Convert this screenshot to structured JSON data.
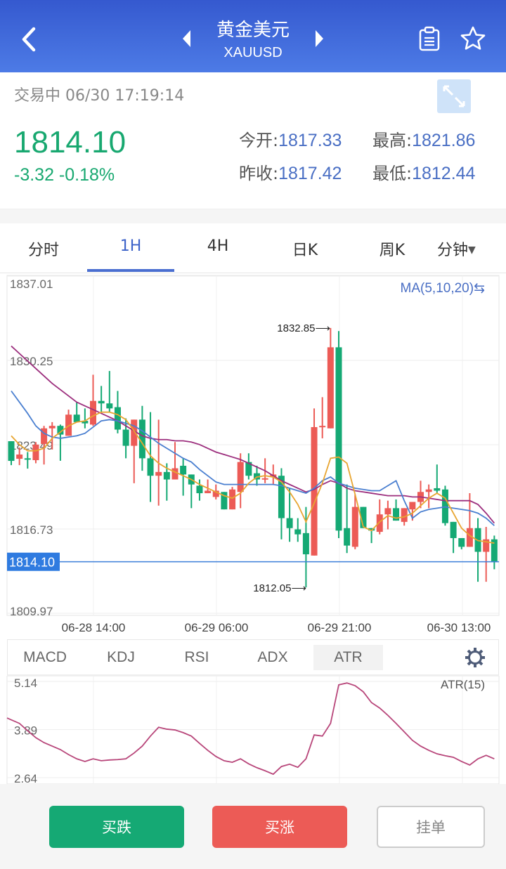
{
  "header": {
    "title": "黄金美元",
    "symbol": "XAUUSD",
    "icons": [
      "back-chevron-icon",
      "prev-triangle-icon",
      "next-triangle-icon",
      "clipboard-icon",
      "star-icon"
    ]
  },
  "quote": {
    "status": "交易中 06/30 17:19:14",
    "price": "1814.10",
    "change": "-3.32 -0.18%",
    "open_label": "今开:",
    "open": "1817.33",
    "high_label": "最高:",
    "high": "1821.86",
    "prev_close_label": "昨收:",
    "prev_close": "1817.42",
    "low_label": "最低:",
    "low": "1812.44",
    "expand_icon": "expand-icon"
  },
  "colors": {
    "up": "#ec5b56",
    "down": "#15a974",
    "accent": "#3d63c9",
    "ma5": "#e8a531",
    "ma10": "#4a7fd0",
    "ma20": "#9c2e7d",
    "atr": "#b8467a"
  },
  "period_tabs": [
    {
      "label": "分时"
    },
    {
      "label": "1H",
      "active": true
    },
    {
      "label": "4H"
    },
    {
      "label": "日K"
    },
    {
      "label": "周K"
    },
    {
      "label": "分钟"
    }
  ],
  "indicator_tabs": [
    {
      "label": "MACD"
    },
    {
      "label": "KDJ"
    },
    {
      "label": "RSI"
    },
    {
      "label": "ADX"
    },
    {
      "label": "ATR",
      "active": true
    }
  ],
  "buttons": {
    "sell": "买跌",
    "buy": "买涨",
    "order": "挂单"
  },
  "chart_data": [
    {
      "type": "candlestick",
      "ma_label": "MA(5,10,20)⇆",
      "y_ticks": [
        "1837.01",
        "1830.25",
        "1823.49",
        "1816.73",
        "1809.97"
      ],
      "ylim": [
        1809.97,
        1837.01
      ],
      "current_price": "1814.10",
      "max_label": "1832.85⟶",
      "min_label": "1812.05⟶",
      "x_ticks": [
        "06-28 14:00",
        "06-29 06:00",
        "06-29 21:00",
        "06-30 13:00"
      ],
      "grid": true,
      "ohlc": [
        [
          1823.77,
          1823.77,
          1821.85,
          1822.19
        ],
        [
          1822.36,
          1823.26,
          1821.85,
          1822.7
        ],
        [
          1822.4,
          1822.9,
          1821.57,
          1822.3
        ],
        [
          1822.25,
          1823.7,
          1822.0,
          1823.5
        ],
        [
          1823.55,
          1825.0,
          1821.9,
          1824.8
        ],
        [
          1824.8,
          1825.3,
          1823.1,
          1825.0
        ],
        [
          1825.0,
          1825.1,
          1822.2,
          1824.3
        ],
        [
          1824.2,
          1826.3,
          1824.2,
          1825.9
        ],
        [
          1825.9,
          1826.9,
          1825.3,
          1825.3
        ],
        [
          1825.4,
          1826.4,
          1824.8,
          1825.2
        ],
        [
          1825.1,
          1829.1,
          1825.0,
          1827.0
        ],
        [
          1827.0,
          1828.2,
          1826.1,
          1826.8
        ],
        [
          1826.8,
          1829.4,
          1826.1,
          1826.4
        ],
        [
          1826.5,
          1827.8,
          1824.4,
          1824.7
        ],
        [
          1824.7,
          1825.6,
          1822.4,
          1823.4
        ],
        [
          1823.4,
          1825.5,
          1820.4,
          1825.5
        ],
        [
          1825.5,
          1826.6,
          1821.4,
          1822.4
        ],
        [
          1822.4,
          1826.1,
          1818.9,
          1821.0
        ],
        [
          1821.0,
          1825.5,
          1818.6,
          1821.3
        ],
        [
          1821.3,
          1822.0,
          1819.0,
          1820.7
        ],
        [
          1820.7,
          1823.7,
          1820.7,
          1821.6
        ],
        [
          1821.8,
          1822.4,
          1819.4,
          1821.1
        ],
        [
          1821.1,
          1821.1,
          1818.4,
          1820.3
        ],
        [
          1820.2,
          1820.7,
          1819.0,
          1819.6
        ],
        [
          1819.6,
          1820.7,
          1819.6,
          1819.8
        ],
        [
          1819.3,
          1820.3,
          1819.1,
          1819.8
        ],
        [
          1819.7,
          1819.7,
          1818.3,
          1818.3
        ],
        [
          1818.3,
          1820.1,
          1818.3,
          1819.9
        ],
        [
          1819.7,
          1822.8,
          1818.4,
          1822.1
        ],
        [
          1822.1,
          1822.8,
          1820.7,
          1821.0
        ],
        [
          1821.2,
          1821.8,
          1820.2,
          1820.7
        ],
        [
          1820.7,
          1822.4,
          1820.4,
          1820.8
        ],
        [
          1820.9,
          1821.9,
          1820.3,
          1821.1
        ],
        [
          1821.0,
          1821.6,
          1815.9,
          1817.6
        ],
        [
          1817.6,
          1820.0,
          1815.7,
          1816.8
        ],
        [
          1816.7,
          1817.6,
          1815.7,
          1816.3
        ],
        [
          1816.4,
          1818.5,
          1812.05,
          1814.7
        ],
        [
          1814.6,
          1826.4,
          1814.6,
          1824.9
        ],
        [
          1824.9,
          1827.3,
          1824.0,
          1825.0
        ],
        [
          1824.8,
          1832.85,
          1824.8,
          1831.3
        ],
        [
          1831.3,
          1832.6,
          1816.0,
          1816.6
        ],
        [
          1816.8,
          1820.3,
          1814.8,
          1815.4
        ],
        [
          1815.3,
          1819.5,
          1815.1,
          1818.5
        ],
        [
          1818.5,
          1818.5,
          1816.8,
          1816.8
        ],
        [
          1816.8,
          1816.8,
          1815.6,
          1816.6
        ],
        [
          1816.5,
          1819.1,
          1816.3,
          1817.9
        ],
        [
          1817.9,
          1819.0,
          1816.7,
          1818.4
        ],
        [
          1818.4,
          1819.1,
          1817.4,
          1817.4
        ],
        [
          1817.3,
          1818.4,
          1817.0,
          1818.4
        ],
        [
          1818.3,
          1818.9,
          1817.4,
          1818.9
        ],
        [
          1818.9,
          1820.6,
          1818.4,
          1819.7
        ],
        [
          1819.7,
          1820.3,
          1818.4,
          1819.9
        ],
        [
          1820.0,
          1821.9,
          1819.6,
          1819.8
        ],
        [
          1819.9,
          1820.2,
          1817.0,
          1817.2
        ],
        [
          1817.3,
          1817.3,
          1814.8,
          1816.0
        ],
        [
          1816.0,
          1816.0,
          1815.1,
          1815.3
        ],
        [
          1815.3,
          1819.6,
          1815.3,
          1816.8
        ],
        [
          1816.8,
          1817.6,
          1812.5,
          1814.9
        ],
        [
          1814.9,
          1816.9,
          1812.5,
          1815.9
        ],
        [
          1815.9,
          1816.2,
          1813.5,
          1814.1
        ]
      ],
      "ma5": [
        1824.2,
        1823.5,
        1823.0,
        1823.0,
        1823.2,
        1824.0,
        1824.5,
        1825.0,
        1825.3,
        1825.4,
        1825.8,
        1826.1,
        1826.1,
        1825.9,
        1825.5,
        1824.6,
        1823.6,
        1822.6,
        1822.0,
        1821.6,
        1821.3,
        1821.0,
        1820.7,
        1820.3,
        1820.0,
        1819.7,
        1819.4,
        1819.2,
        1819.6,
        1820.4,
        1820.9,
        1821.0,
        1820.9,
        1820.5,
        1819.7,
        1818.7,
        1817.3,
        1818.8,
        1820.4,
        1822.4,
        1822.5,
        1822.0,
        1819.5,
        1816.9,
        1816.6,
        1817.3,
        1817.8,
        1817.6,
        1817.7,
        1818.0,
        1818.6,
        1819.2,
        1819.6,
        1819.2,
        1818.0,
        1816.8,
        1816.2,
        1815.8,
        1815.7,
        1815.6
      ],
      "ma10": [
        1827.8,
        1826.9,
        1826.0,
        1825.0,
        1824.4,
        1824.1,
        1824.0,
        1824.1,
        1824.2,
        1824.4,
        1824.9,
        1825.4,
        1825.5,
        1825.4,
        1825.2,
        1825.0,
        1824.6,
        1824.1,
        1823.6,
        1823.2,
        1822.8,
        1822.4,
        1822.1,
        1821.5,
        1821.0,
        1820.5,
        1820.3,
        1820.3,
        1820.3,
        1820.3,
        1820.3,
        1820.3,
        1820.3,
        1820.2,
        1820.0,
        1819.8,
        1819.6,
        1820.0,
        1820.6,
        1820.9,
        1820.4,
        1820.2,
        1820.0,
        1819.9,
        1819.8,
        1819.8,
        1820.2,
        1820.6,
        1819.0,
        1817.6,
        1818.1,
        1818.3,
        1818.4,
        1818.5,
        1818.4,
        1818.3,
        1818.2,
        1818.0,
        1817.6,
        1817.0
      ],
      "ma20": [
        1831.4,
        1830.8,
        1830.2,
        1829.6,
        1829.0,
        1828.4,
        1827.9,
        1827.4,
        1826.9,
        1826.6,
        1826.3,
        1826.0,
        1825.7,
        1825.4,
        1825.0,
        1824.6,
        1824.2,
        1824.0,
        1823.9,
        1823.9,
        1823.8,
        1823.8,
        1823.7,
        1823.5,
        1823.2,
        1822.9,
        1822.7,
        1822.5,
        1822.3,
        1822.0,
        1821.7,
        1821.4,
        1821.0,
        1820.6,
        1820.3,
        1820.0,
        1819.7,
        1819.9,
        1820.3,
        1820.6,
        1820.4,
        1820.0,
        1819.8,
        1819.7,
        1819.6,
        1819.5,
        1819.4,
        1819.4,
        1819.4,
        1819.3,
        1819.3,
        1819.2,
        1819.1,
        1819.0,
        1819.0,
        1819.0,
        1819.0,
        1818.7,
        1818.0,
        1817.2
      ]
    },
    {
      "type": "line",
      "label": "ATR(15)",
      "y_ticks": [
        "5.14",
        "3.89",
        "2.64"
      ],
      "ylim": [
        2.64,
        5.14
      ],
      "grid": true,
      "values": [
        4.19,
        4.05,
        3.86,
        3.68,
        3.55,
        3.46,
        3.37,
        3.24,
        3.13,
        3.06,
        3.13,
        3.08,
        3.1,
        3.11,
        3.13,
        3.28,
        3.46,
        3.72,
        3.95,
        3.9,
        3.88,
        3.81,
        3.72,
        3.53,
        3.35,
        3.19,
        3.08,
        3.04,
        3.13,
        3.0,
        2.9,
        2.82,
        2.73,
        2.93,
        2.99,
        2.91,
        3.13,
        3.75,
        3.72,
        4.05,
        5.05,
        5.1,
        5.03,
        4.87,
        4.59,
        4.45,
        4.26,
        4.05,
        3.83,
        3.61,
        3.46,
        3.35,
        3.26,
        3.21,
        3.17,
        3.06,
        2.97,
        3.13,
        3.22,
        3.13
      ]
    }
  ]
}
